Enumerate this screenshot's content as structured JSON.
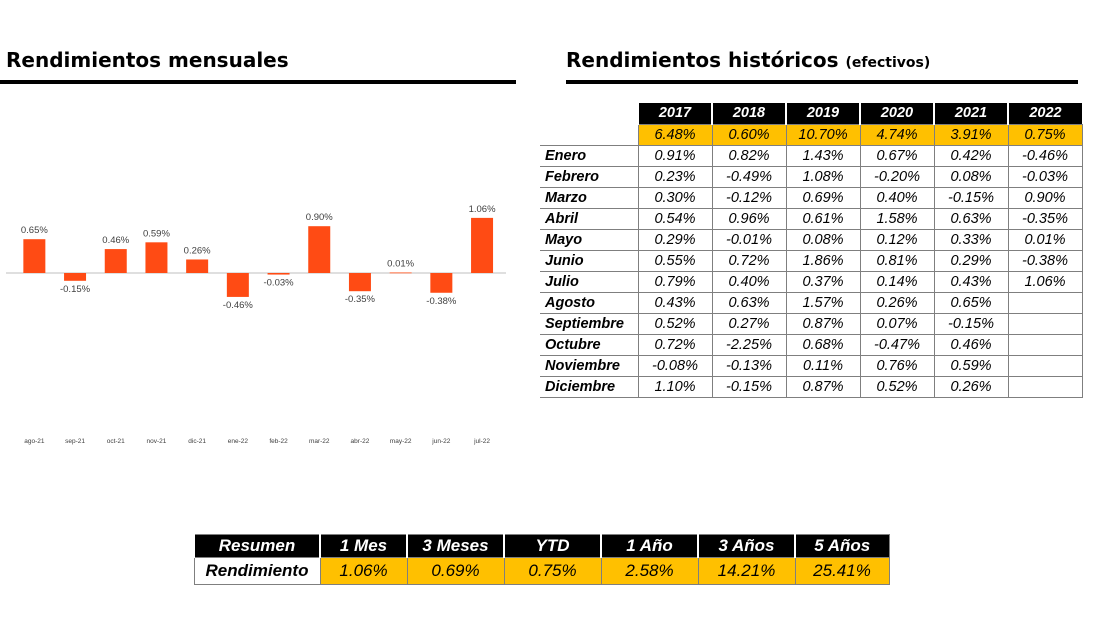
{
  "monthly": {
    "title": "Rendimientos mensuales"
  },
  "historical": {
    "title": "Rendimientos históricos",
    "title_suffix": "(efectivos)",
    "years": [
      "2017",
      "2018",
      "2019",
      "2020",
      "2021",
      "2022"
    ],
    "annual": [
      "6.48%",
      "0.60%",
      "10.70%",
      "4.74%",
      "3.91%",
      "0.75%"
    ],
    "rows": [
      {
        "month": "Enero",
        "values": [
          "0.91%",
          "0.82%",
          "1.43%",
          "0.67%",
          "0.42%",
          "-0.46%"
        ]
      },
      {
        "month": "Febrero",
        "values": [
          "0.23%",
          "-0.49%",
          "1.08%",
          "-0.20%",
          "0.08%",
          "-0.03%"
        ]
      },
      {
        "month": "Marzo",
        "values": [
          "0.30%",
          "-0.12%",
          "0.69%",
          "0.40%",
          "-0.15%",
          "0.90%"
        ]
      },
      {
        "month": "Abril",
        "values": [
          "0.54%",
          "0.96%",
          "0.61%",
          "1.58%",
          "0.63%",
          "-0.35%"
        ]
      },
      {
        "month": "Mayo",
        "values": [
          "0.29%",
          "-0.01%",
          "0.08%",
          "0.12%",
          "0.33%",
          "0.01%"
        ]
      },
      {
        "month": "Junio",
        "values": [
          "0.55%",
          "0.72%",
          "1.86%",
          "0.81%",
          "0.29%",
          "-0.38%"
        ]
      },
      {
        "month": "Julio",
        "values": [
          "0.79%",
          "0.40%",
          "0.37%",
          "0.14%",
          "0.43%",
          "1.06%"
        ]
      },
      {
        "month": "Agosto",
        "values": [
          "0.43%",
          "0.63%",
          "1.57%",
          "0.26%",
          "0.65%",
          ""
        ]
      },
      {
        "month": "Septiembre",
        "values": [
          "0.52%",
          "0.27%",
          "0.87%",
          "0.07%",
          "-0.15%",
          ""
        ]
      },
      {
        "month": "Octubre",
        "values": [
          "0.72%",
          "-2.25%",
          "0.68%",
          "-0.47%",
          "0.46%",
          ""
        ]
      },
      {
        "month": "Noviembre",
        "values": [
          "-0.08%",
          "-0.13%",
          "0.11%",
          "0.76%",
          "0.59%",
          ""
        ]
      },
      {
        "month": "Diciembre",
        "values": [
          "1.10%",
          "-0.15%",
          "0.87%",
          "0.52%",
          "0.26%",
          ""
        ]
      }
    ],
    "colors": {
      "header_bg": "#000000",
      "annual_bg": "#ffc000"
    }
  },
  "summary": {
    "headers": [
      "Resumen",
      "1 Mes",
      "3 Meses",
      "YTD",
      "1 Año",
      "3 Años",
      "5 Años"
    ],
    "row_label": "Rendimiento",
    "values": [
      "1.06%",
      "0.69%",
      "0.75%",
      "2.58%",
      "14.21%",
      "25.41%"
    ]
  },
  "chart_data": {
    "type": "bar",
    "categories": [
      "ago-21",
      "sep-21",
      "oct-21",
      "nov-21",
      "dic-21",
      "ene-22",
      "feb-22",
      "mar-22",
      "abr-22",
      "may-22",
      "jun-22",
      "jul-22"
    ],
    "values": [
      0.65,
      -0.15,
      0.46,
      0.59,
      0.26,
      -0.46,
      -0.03,
      0.9,
      -0.35,
      0.01,
      -0.38,
      1.06
    ],
    "data_labels": [
      "0.65%",
      "-0.15%",
      "0.46%",
      "0.59%",
      "0.26%",
      "-0.46%",
      "-0.03%",
      "0.90%",
      "-0.35%",
      "0.01%",
      "-0.38%",
      "1.06%"
    ],
    "title": "",
    "xlabel": "",
    "ylabel": "",
    "bar_color": "#ff4b14",
    "grid": false,
    "legend": "none"
  }
}
